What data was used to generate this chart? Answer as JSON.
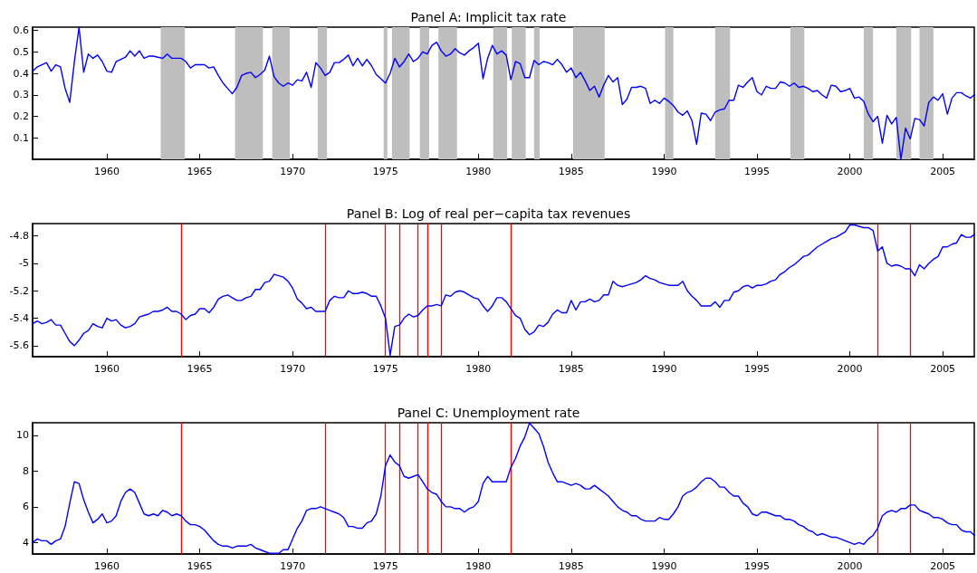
{
  "chart_data": [
    {
      "type": "line",
      "title": "Panel A: Implicit tax rate",
      "x": [
        1956,
        1956.25,
        1956.5,
        1956.75,
        1957,
        1957.25,
        1957.5,
        1957.75,
        1958,
        1958.25,
        1958.5,
        1958.75,
        1959,
        1959.25,
        1959.5,
        1959.75,
        1960,
        1960.25,
        1960.5,
        1960.75,
        1961,
        1961.25,
        1961.5,
        1961.75,
        1962,
        1962.25,
        1962.5,
        1962.75,
        1963,
        1963.25,
        1963.5,
        1963.75,
        1964,
        1964.25,
        1964.5,
        1964.75,
        1965,
        1965.25,
        1965.5,
        1965.75,
        1966,
        1966.25,
        1966.5,
        1966.75,
        1967,
        1967.25,
        1967.5,
        1967.75,
        1968,
        1968.25,
        1968.5,
        1968.75,
        1969,
        1969.25,
        1969.5,
        1969.75,
        1970,
        1970.25,
        1970.5,
        1970.75,
        1971,
        1971.25,
        1971.5,
        1971.75,
        1972,
        1972.25,
        1972.5,
        1972.75,
        1973,
        1973.25,
        1973.5,
        1973.75,
        1974,
        1974.25,
        1974.5,
        1974.75,
        1975,
        1975.25,
        1975.5,
        1975.75,
        1976,
        1976.25,
        1976.5,
        1976.75,
        1977,
        1977.25,
        1977.5,
        1977.75,
        1978,
        1978.25,
        1978.5,
        1978.75,
        1979,
        1979.25,
        1979.5,
        1979.75,
        1980,
        1980.25,
        1980.5,
        1980.75,
        1981,
        1981.25,
        1981.5,
        1981.75,
        1982,
        1982.25,
        1982.5,
        1982.75,
        1983,
        1983.25,
        1983.5,
        1983.75,
        1984,
        1984.25,
        1984.5,
        1984.75,
        1985,
        1985.25,
        1985.5,
        1985.75,
        1986,
        1986.25,
        1986.5,
        1986.75,
        1987,
        1987.25,
        1987.5,
        1987.75,
        1988,
        1988.25,
        1988.5,
        1988.75,
        1989,
        1989.25,
        1989.5,
        1989.75,
        1990,
        1990.25,
        1990.5,
        1990.75,
        1991,
        1991.25,
        1991.5,
        1991.75,
        1992,
        1992.25,
        1992.5,
        1992.75,
        1993,
        1993.25,
        1993.5,
        1993.75,
        1994,
        1994.25,
        1994.5,
        1994.75,
        1995,
        1995.25,
        1995.5,
        1995.75,
        1996,
        1996.25,
        1996.5,
        1996.75,
        1997,
        1997.25,
        1997.5,
        1997.75,
        1998,
        1998.25,
        1998.5,
        1998.75,
        1999,
        1999.25,
        1999.5,
        1999.75,
        2000,
        2000.25,
        2000.5,
        2000.75,
        2001,
        2001.25,
        2001.5,
        2001.75,
        2002,
        2002.25,
        2002.5,
        2002.75,
        2003,
        2003.25,
        2003.5,
        2003.75,
        2004,
        2004.25,
        2004.5,
        2004.75,
        2005,
        2005.25,
        2005.5,
        2005.75,
        2006,
        2006.25,
        2006.5,
        2006.7
      ],
      "series": [
        {
          "color": "#0000ff",
          "values": [
            0.41,
            0.43,
            0.44,
            0.45,
            0.41,
            0.44,
            0.43,
            0.33,
            0.265,
            0.455,
            0.615,
            0.405,
            0.49,
            0.47,
            0.485,
            0.455,
            0.41,
            0.405,
            0.455,
            0.465,
            0.475,
            0.505,
            0.48,
            0.505,
            0.47,
            0.48,
            0.48,
            0.475,
            0.47,
            0.49,
            0.47,
            0.47,
            0.47,
            0.455,
            0.425,
            0.44,
            0.44,
            0.44,
            0.425,
            0.43,
            0.39,
            0.355,
            0.33,
            0.305,
            0.335,
            0.39,
            0.4,
            0.405,
            0.38,
            0.395,
            0.415,
            0.48,
            0.385,
            0.355,
            0.34,
            0.355,
            0.345,
            0.37,
            0.365,
            0.405,
            0.335,
            0.45,
            0.425,
            0.39,
            0.405,
            0.45,
            0.45,
            0.465,
            0.485,
            0.435,
            0.47,
            0.435,
            0.465,
            0.435,
            0.395,
            0.375,
            0.355,
            0.4,
            0.47,
            0.43,
            0.455,
            0.49,
            0.455,
            0.47,
            0.5,
            0.49,
            0.53,
            0.545,
            0.505,
            0.48,
            0.49,
            0.515,
            0.495,
            0.485,
            0.505,
            0.52,
            0.54,
            0.375,
            0.47,
            0.53,
            0.49,
            0.505,
            0.485,
            0.37,
            0.455,
            0.445,
            0.38,
            0.38,
            0.46,
            0.44,
            0.455,
            0.45,
            0.44,
            0.465,
            0.44,
            0.405,
            0.425,
            0.38,
            0.405,
            0.365,
            0.32,
            0.34,
            0.29,
            0.345,
            0.39,
            0.36,
            0.38,
            0.255,
            0.28,
            0.335,
            0.335,
            0.34,
            0.33,
            0.26,
            0.275,
            0.26,
            0.285,
            0.27,
            0.25,
            0.22,
            0.205,
            0.225,
            0.18,
            0.07,
            0.215,
            0.21,
            0.18,
            0.22,
            0.23,
            0.235,
            0.275,
            0.275,
            0.345,
            0.335,
            0.36,
            0.38,
            0.315,
            0.3,
            0.34,
            0.33,
            0.33,
            0.36,
            0.355,
            0.34,
            0.355,
            0.335,
            0.34,
            0.33,
            0.315,
            0.32,
            0.3,
            0.285,
            0.345,
            0.34,
            0.315,
            0.32,
            0.33,
            0.285,
            0.29,
            0.27,
            0.21,
            0.175,
            0.2,
            0.075,
            0.205,
            0.165,
            0.195,
            0.0,
            0.145,
            0.095,
            0.19,
            0.185,
            0.155,
            0.265,
            0.29,
            0.275,
            0.305,
            0.21,
            0.285,
            0.31,
            0.31,
            0.295,
            0.285,
            0.3
          ]
        }
      ],
      "xlim": [
        1956,
        2006.7
      ],
      "xticks": [
        1960,
        1965,
        1970,
        1975,
        1980,
        1985,
        1990,
        1995,
        2000,
        2005
      ],
      "ylim": [
        0,
        0.615
      ],
      "yticks": [
        0.1,
        0.2,
        0.3,
        0.4,
        0.5,
        0.6
      ],
      "bands": [
        {
          "axis": "x",
          "from": 1962.9,
          "to": 1964.2,
          "color": "#bebebe"
        },
        {
          "axis": "x",
          "from": 1966.9,
          "to": 1968.4,
          "color": "#bebebe"
        },
        {
          "axis": "x",
          "from": 1968.9,
          "to": 1969.85,
          "color": "#bebebe"
        },
        {
          "axis": "x",
          "from": 1971.35,
          "to": 1971.85,
          "color": "#bebebe"
        },
        {
          "axis": "x",
          "from": 1974.9,
          "to": 1975.1,
          "color": "#bebebe"
        },
        {
          "axis": "x",
          "from": 1975.35,
          "to": 1976.3,
          "color": "#bebebe"
        },
        {
          "axis": "x",
          "from": 1976.85,
          "to": 1977.35,
          "color": "#bebebe"
        },
        {
          "axis": "x",
          "from": 1977.85,
          "to": 1978.85,
          "color": "#bebebe"
        },
        {
          "axis": "x",
          "from": 1980.8,
          "to": 1981.55,
          "color": "#bebebe"
        },
        {
          "axis": "x",
          "from": 1981.8,
          "to": 1982.55,
          "color": "#bebebe"
        },
        {
          "axis": "x",
          "from": 1983.0,
          "to": 1983.3,
          "color": "#bebebe"
        },
        {
          "axis": "x",
          "from": 1985.1,
          "to": 1986.8,
          "color": "#bebebe"
        },
        {
          "axis": "x",
          "from": 1990.05,
          "to": 1990.5,
          "color": "#bebebe"
        },
        {
          "axis": "x",
          "from": 1992.75,
          "to": 1993.55,
          "color": "#bebebe"
        },
        {
          "axis": "x",
          "from": 1996.8,
          "to": 1997.55,
          "color": "#bebebe"
        },
        {
          "axis": "x",
          "from": 2000.75,
          "to": 2001.25,
          "color": "#bebebe"
        },
        {
          "axis": "x",
          "from": 2002.5,
          "to": 2003.3,
          "color": "#bebebe"
        },
        {
          "axis": "x",
          "from": 2003.75,
          "to": 2004.5,
          "color": "#bebebe"
        }
      ]
    },
    {
      "type": "line",
      "title": "Panel B: Log of real per−capita tax revenues",
      "x": [
        1956,
        1956.25,
        1956.5,
        1956.75,
        1957,
        1957.25,
        1957.5,
        1957.75,
        1958,
        1958.25,
        1958.5,
        1958.75,
        1959,
        1959.25,
        1959.5,
        1959.75,
        1960,
        1960.25,
        1960.5,
        1960.75,
        1961,
        1961.25,
        1961.5,
        1961.75,
        1962,
        1962.25,
        1962.5,
        1962.75,
        1963,
        1963.25,
        1963.5,
        1963.75,
        1964,
        1964.25,
        1964.5,
        1964.75,
        1965,
        1965.25,
        1965.5,
        1965.75,
        1966,
        1966.25,
        1966.5,
        1966.75,
        1967,
        1967.25,
        1967.5,
        1967.75,
        1968,
        1968.25,
        1968.5,
        1968.75,
        1969,
        1969.25,
        1969.5,
        1969.75,
        1970,
        1970.25,
        1970.5,
        1970.75,
        1971,
        1971.25,
        1971.5,
        1971.75,
        1972,
        1972.25,
        1972.5,
        1972.75,
        1973,
        1973.25,
        1973.5,
        1973.75,
        1974,
        1974.25,
        1974.5,
        1974.75,
        1975,
        1975.25,
        1975.5,
        1975.75,
        1976,
        1976.25,
        1976.5,
        1976.75,
        1977,
        1977.25,
        1977.5,
        1977.75,
        1978,
        1978.25,
        1978.5,
        1978.75,
        1979,
        1979.25,
        1979.5,
        1979.75,
        1980,
        1980.25,
        1980.5,
        1980.75,
        1981,
        1981.25,
        1981.5,
        1981.75,
        1982,
        1982.25,
        1982.5,
        1982.75,
        1983,
        1983.25,
        1983.5,
        1983.75,
        1984,
        1984.25,
        1984.5,
        1984.75,
        1985,
        1985.25,
        1985.5,
        1985.75,
        1986,
        1986.25,
        1986.5,
        1986.75,
        1987,
        1987.25,
        1987.5,
        1987.75,
        1988,
        1988.25,
        1988.5,
        1988.75,
        1989,
        1989.25,
        1989.5,
        1989.75,
        1990,
        1990.25,
        1990.5,
        1990.75,
        1991,
        1991.25,
        1991.5,
        1991.75,
        1992,
        1992.25,
        1992.5,
        1992.75,
        1993,
        1993.25,
        1993.5,
        1993.75,
        1994,
        1994.25,
        1994.5,
        1994.75,
        1995,
        1995.25,
        1995.5,
        1995.75,
        1996,
        1996.25,
        1996.5,
        1996.75,
        1997,
        1997.25,
        1997.5,
        1997.75,
        1998,
        1998.25,
        1998.5,
        1998.75,
        1999,
        1999.25,
        1999.5,
        1999.75,
        2000,
        2000.25,
        2000.5,
        2000.75,
        2001,
        2001.25,
        2001.5,
        2001.75,
        2002,
        2002.25,
        2002.5,
        2002.75,
        2003,
        2003.25,
        2003.5,
        2003.75,
        2004,
        2004.25,
        2004.5,
        2004.75,
        2005,
        2005.25,
        2005.5,
        2005.75,
        2006,
        2006.25,
        2006.5,
        2006.7
      ],
      "series": [
        {
          "color": "#0000ff",
          "values": [
            -5.44,
            -5.42,
            -5.44,
            -5.43,
            -5.41,
            -5.45,
            -5.45,
            -5.51,
            -5.57,
            -5.6,
            -5.56,
            -5.51,
            -5.49,
            -5.44,
            -5.46,
            -5.47,
            -5.4,
            -5.42,
            -5.41,
            -5.45,
            -5.47,
            -5.46,
            -5.44,
            -5.39,
            -5.38,
            -5.37,
            -5.35,
            -5.35,
            -5.34,
            -5.32,
            -5.35,
            -5.35,
            -5.37,
            -5.41,
            -5.38,
            -5.37,
            -5.33,
            -5.33,
            -5.36,
            -5.32,
            -5.26,
            -5.24,
            -5.23,
            -5.25,
            -5.27,
            -5.27,
            -5.25,
            -5.24,
            -5.19,
            -5.19,
            -5.14,
            -5.13,
            -5.08,
            -5.09,
            -5.1,
            -5.13,
            -5.18,
            -5.26,
            -5.29,
            -5.33,
            -5.32,
            -5.35,
            -5.35,
            -5.35,
            -5.27,
            -5.24,
            -5.25,
            -5.25,
            -5.2,
            -5.22,
            -5.22,
            -5.21,
            -5.22,
            -5.24,
            -5.24,
            -5.31,
            -5.4,
            -5.67,
            -5.46,
            -5.45,
            -5.4,
            -5.37,
            -5.39,
            -5.38,
            -5.34,
            -5.31,
            -5.31,
            -5.3,
            -5.31,
            -5.23,
            -5.24,
            -5.21,
            -5.2,
            -5.21,
            -5.23,
            -5.25,
            -5.26,
            -5.31,
            -5.35,
            -5.31,
            -5.25,
            -5.25,
            -5.28,
            -5.33,
            -5.38,
            -5.4,
            -5.48,
            -5.52,
            -5.5,
            -5.45,
            -5.46,
            -5.43,
            -5.37,
            -5.34,
            -5.36,
            -5.36,
            -5.27,
            -5.34,
            -5.28,
            -5.28,
            -5.26,
            -5.28,
            -5.27,
            -5.23,
            -5.23,
            -5.13,
            -5.16,
            -5.17,
            -5.16,
            -5.15,
            -5.14,
            -5.12,
            -5.09,
            -5.11,
            -5.12,
            -5.14,
            -5.15,
            -5.16,
            -5.16,
            -5.16,
            -5.13,
            -5.2,
            -5.24,
            -5.27,
            -5.31,
            -5.31,
            -5.31,
            -5.28,
            -5.32,
            -5.27,
            -5.27,
            -5.21,
            -5.2,
            -5.17,
            -5.16,
            -5.18,
            -5.16,
            -5.16,
            -5.15,
            -5.13,
            -5.12,
            -5.08,
            -5.06,
            -5.03,
            -5.01,
            -4.98,
            -4.95,
            -4.94,
            -4.91,
            -4.88,
            -4.86,
            -4.84,
            -4.82,
            -4.81,
            -4.79,
            -4.77,
            -4.72,
            -4.72,
            -4.73,
            -4.74,
            -4.74,
            -4.76,
            -4.91,
            -4.88,
            -5.0,
            -5.02,
            -5.01,
            -5.02,
            -5.04,
            -5.04,
            -5.09,
            -5.01,
            -5.04,
            -5.0,
            -4.97,
            -4.95,
            -4.88,
            -4.88,
            -4.86,
            -4.85,
            -4.79,
            -4.81,
            -4.81,
            -4.79
          ]
        }
      ],
      "xlim": [
        1956,
        2006.7
      ],
      "xticks": [
        1960,
        1965,
        1970,
        1975,
        1980,
        1985,
        1990,
        1995,
        2000,
        2005
      ],
      "ylim": [
        -5.68,
        -4.71
      ],
      "yticks": [
        -5.6,
        -5.4,
        -5.2,
        -5,
        -4.8
      ],
      "ref_lines": [
        {
          "axis": "x",
          "value": 1964.0,
          "color": "#ff0000"
        },
        {
          "axis": "x",
          "value": 1971.75,
          "color": "#ff0000"
        },
        {
          "axis": "x",
          "value": 1975.0,
          "color": "#ff0000"
        },
        {
          "axis": "x",
          "value": 1975.75,
          "color": "#ff0000"
        },
        {
          "axis": "x",
          "value": 1976.75,
          "color": "#ff0000"
        },
        {
          "axis": "x",
          "value": 1977.25,
          "color": "#ff0000"
        },
        {
          "axis": "x",
          "value": 1978.0,
          "color": "#ff0000"
        },
        {
          "axis": "x",
          "value": 1981.75,
          "color": "#ff0000"
        },
        {
          "axis": "x",
          "value": 2001.5,
          "color": "#ff0000"
        },
        {
          "axis": "x",
          "value": 2003.25,
          "color": "#ff0000"
        }
      ]
    },
    {
      "type": "line",
      "title": "Panel C: Unemployment rate",
      "x": [
        1956,
        1956.25,
        1956.5,
        1956.75,
        1957,
        1957.25,
        1957.5,
        1957.75,
        1958,
        1958.25,
        1958.5,
        1958.75,
        1959,
        1959.25,
        1959.5,
        1959.75,
        1960,
        1960.25,
        1960.5,
        1960.75,
        1961,
        1961.25,
        1961.5,
        1961.75,
        1962,
        1962.25,
        1962.5,
        1962.75,
        1963,
        1963.25,
        1963.5,
        1963.75,
        1964,
        1964.25,
        1964.5,
        1964.75,
        1965,
        1965.25,
        1965.5,
        1965.75,
        1966,
        1966.25,
        1966.5,
        1966.75,
        1967,
        1967.25,
        1967.5,
        1967.75,
        1968,
        1968.25,
        1968.5,
        1968.75,
        1969,
        1969.25,
        1969.5,
        1969.75,
        1970,
        1970.25,
        1970.5,
        1970.75,
        1971,
        1971.25,
        1971.5,
        1971.75,
        1972,
        1972.25,
        1972.5,
        1972.75,
        1973,
        1973.25,
        1973.5,
        1973.75,
        1974,
        1974.25,
        1974.5,
        1974.75,
        1975,
        1975.25,
        1975.5,
        1975.75,
        1976,
        1976.25,
        1976.5,
        1976.75,
        1977,
        1977.25,
        1977.5,
        1977.75,
        1978,
        1978.25,
        1978.5,
        1978.75,
        1979,
        1979.25,
        1979.5,
        1979.75,
        1980,
        1980.25,
        1980.5,
        1980.75,
        1981,
        1981.25,
        1981.5,
        1981.75,
        1982,
        1982.25,
        1982.5,
        1982.75,
        1983,
        1983.25,
        1983.5,
        1983.75,
        1984,
        1984.25,
        1984.5,
        1984.75,
        1985,
        1985.25,
        1985.5,
        1985.75,
        1986,
        1986.25,
        1986.5,
        1986.75,
        1987,
        1987.25,
        1987.5,
        1987.75,
        1988,
        1988.25,
        1988.5,
        1988.75,
        1989,
        1989.25,
        1989.5,
        1989.75,
        1990,
        1990.25,
        1990.5,
        1990.75,
        1991,
        1991.25,
        1991.5,
        1991.75,
        1992,
        1992.25,
        1992.5,
        1992.75,
        1993,
        1993.25,
        1993.5,
        1993.75,
        1994,
        1994.25,
        1994.5,
        1994.75,
        1995,
        1995.25,
        1995.5,
        1995.75,
        1996,
        1996.25,
        1996.5,
        1996.75,
        1997,
        1997.25,
        1997.5,
        1997.75,
        1998,
        1998.25,
        1998.5,
        1998.75,
        1999,
        1999.25,
        1999.5,
        1999.75,
        2000,
        2000.25,
        2000.5,
        2000.75,
        2001,
        2001.25,
        2001.5,
        2001.75,
        2002,
        2002.25,
        2002.5,
        2002.75,
        2003,
        2003.25,
        2003.5,
        2003.75,
        2004,
        2004.25,
        2004.5,
        2004.75,
        2005,
        2005.25,
        2005.5,
        2005.75,
        2006,
        2006.25,
        2006.5,
        2006.7
      ],
      "series": [
        {
          "color": "#0000ff",
          "values": [
            4.0,
            4.2,
            4.1,
            4.1,
            3.9,
            4.1,
            4.2,
            4.9,
            6.2,
            7.4,
            7.3,
            6.4,
            5.7,
            5.1,
            5.3,
            5.6,
            5.1,
            5.2,
            5.5,
            6.3,
            6.8,
            7.0,
            6.8,
            6.2,
            5.6,
            5.5,
            5.6,
            5.5,
            5.8,
            5.7,
            5.5,
            5.6,
            5.5,
            5.2,
            5.0,
            5.0,
            4.9,
            4.7,
            4.4,
            4.1,
            3.9,
            3.8,
            3.8,
            3.7,
            3.8,
            3.8,
            3.8,
            3.9,
            3.7,
            3.6,
            3.5,
            3.4,
            3.4,
            3.4,
            3.6,
            3.6,
            4.2,
            4.8,
            5.2,
            5.8,
            5.9,
            5.9,
            6.0,
            5.9,
            5.8,
            5.7,
            5.6,
            5.4,
            4.9,
            4.9,
            4.8,
            4.8,
            5.1,
            5.2,
            5.6,
            6.6,
            8.3,
            8.9,
            8.5,
            8.3,
            7.7,
            7.6,
            7.7,
            7.8,
            7.4,
            7.0,
            6.8,
            6.7,
            6.3,
            6.0,
            6.0,
            5.9,
            5.9,
            5.7,
            5.9,
            6.0,
            6.3,
            7.3,
            7.7,
            7.4,
            7.4,
            7.4,
            7.4,
            8.2,
            8.7,
            9.4,
            9.9,
            10.68,
            10.4,
            10.1,
            9.4,
            8.5,
            7.9,
            7.4,
            7.4,
            7.3,
            7.2,
            7.3,
            7.2,
            7.0,
            7.0,
            7.2,
            7.0,
            6.8,
            6.6,
            6.3,
            6.0,
            5.8,
            5.7,
            5.5,
            5.5,
            5.3,
            5.2,
            5.2,
            5.2,
            5.4,
            5.3,
            5.3,
            5.6,
            6.0,
            6.6,
            6.8,
            6.9,
            7.1,
            7.4,
            7.6,
            7.6,
            7.4,
            7.1,
            7.1,
            6.8,
            6.6,
            6.6,
            6.2,
            6.0,
            5.6,
            5.5,
            5.7,
            5.7,
            5.6,
            5.5,
            5.5,
            5.3,
            5.3,
            5.2,
            5.0,
            4.9,
            4.7,
            4.6,
            4.4,
            4.5,
            4.4,
            4.3,
            4.3,
            4.2,
            4.1,
            4.0,
            3.9,
            4.0,
            3.9,
            4.2,
            4.4,
            4.8,
            5.5,
            5.7,
            5.8,
            5.7,
            5.9,
            5.9,
            6.1,
            6.1,
            5.8,
            5.7,
            5.6,
            5.4,
            5.4,
            5.3,
            5.1,
            5.0,
            5.0,
            4.7,
            4.6,
            4.6,
            4.4
          ]
        }
      ],
      "xlim": [
        1956,
        2006.7
      ],
      "xticks": [
        1960,
        1965,
        1970,
        1975,
        1980,
        1985,
        1990,
        1995,
        2000,
        2005
      ],
      "ylim": [
        3.36,
        10.7
      ],
      "yticks": [
        4,
        6,
        8,
        10
      ],
      "ref_lines": [
        {
          "axis": "x",
          "value": 1964.0,
          "color": "#ff0000"
        },
        {
          "axis": "x",
          "value": 1971.75,
          "color": "#ff0000"
        },
        {
          "axis": "x",
          "value": 1975.0,
          "color": "#ff0000"
        },
        {
          "axis": "x",
          "value": 1975.75,
          "color": "#ff0000"
        },
        {
          "axis": "x",
          "value": 1976.75,
          "color": "#ff0000"
        },
        {
          "axis": "x",
          "value": 1977.25,
          "color": "#ff0000"
        },
        {
          "axis": "x",
          "value": 1978.0,
          "color": "#ff0000"
        },
        {
          "axis": "x",
          "value": 1981.75,
          "color": "#ff0000"
        },
        {
          "axis": "x",
          "value": 2001.5,
          "color": "#ff0000"
        },
        {
          "axis": "x",
          "value": 2003.25,
          "color": "#ff0000"
        }
      ]
    }
  ]
}
